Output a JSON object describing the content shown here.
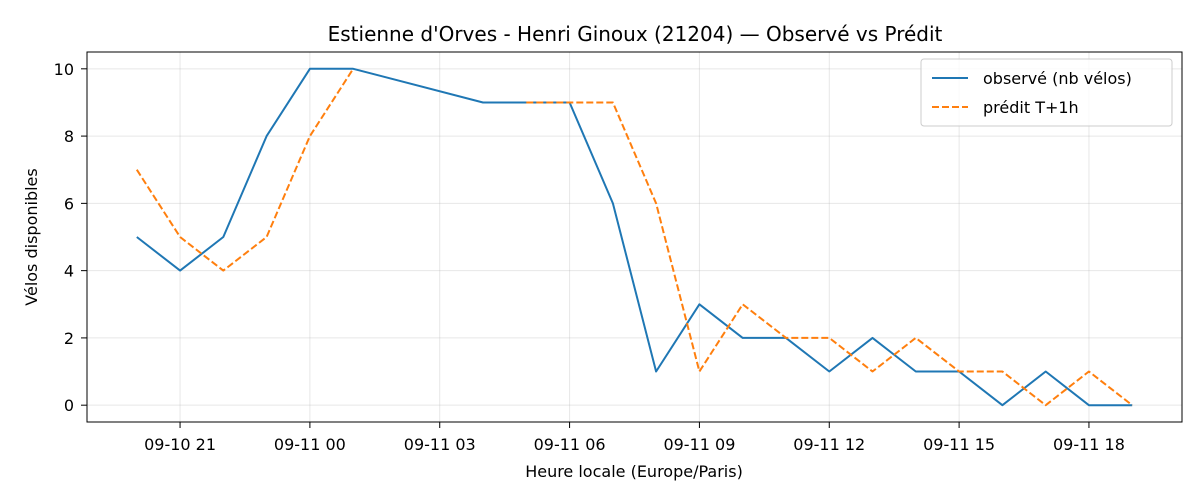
{
  "chart_data": {
    "type": "line",
    "title": "Estienne d'Orves - Henri Ginoux (21204) — Observé vs Prédit",
    "xlabel": "Heure locale (Europe/Paris)",
    "ylabel": "Vélos disponibles",
    "x_start": "2024-09-10 20:00",
    "x_ticks": [
      {
        "hour": 21,
        "label": "09-10 21"
      },
      {
        "hour": 24,
        "label": "09-11 00"
      },
      {
        "hour": 27,
        "label": "09-11 03"
      },
      {
        "hour": 30,
        "label": "09-11 06"
      },
      {
        "hour": 33,
        "label": "09-11 09"
      },
      {
        "hour": 36,
        "label": "09-11 12"
      },
      {
        "hour": 39,
        "label": "09-11 15"
      },
      {
        "hour": 42,
        "label": "09-11 18"
      }
    ],
    "xlim": [
      18.85,
      44.15
    ],
    "ylim": [
      -0.5,
      10.5
    ],
    "y_ticks": [
      0,
      2,
      4,
      6,
      8,
      10
    ],
    "grid": true,
    "legend_position": "top-right",
    "series": [
      {
        "name": "observé (nb vélos)",
        "color": "#1f77b4",
        "dash": "solid",
        "points": [
          [
            20,
            5
          ],
          [
            21,
            4
          ],
          [
            22,
            5
          ],
          [
            23,
            8
          ],
          [
            24,
            10
          ],
          [
            25,
            10
          ],
          [
            28,
            9
          ],
          [
            29,
            9
          ],
          [
            30,
            9
          ],
          [
            31,
            6
          ],
          [
            32,
            1
          ],
          [
            33,
            3
          ],
          [
            34,
            2
          ],
          [
            35,
            2
          ],
          [
            36,
            1
          ],
          [
            37,
            2
          ],
          [
            38,
            1
          ],
          [
            39,
            1
          ],
          [
            40,
            0
          ],
          [
            41,
            1
          ],
          [
            42,
            0
          ],
          [
            43,
            0
          ]
        ]
      },
      {
        "name": "prédit T+1h",
        "color": "#ff7f0e",
        "dash": "dashed",
        "points": [
          [
            20,
            7
          ],
          [
            21,
            5
          ],
          [
            22,
            4
          ],
          [
            23,
            5
          ],
          [
            24,
            8
          ],
          [
            25,
            10
          ],
          null,
          [
            29,
            9
          ],
          [
            30,
            9
          ],
          [
            31,
            9
          ],
          [
            32,
            6
          ],
          [
            33,
            1
          ],
          [
            34,
            3
          ],
          [
            35,
            2
          ],
          [
            36,
            2
          ],
          [
            37,
            1
          ],
          [
            38,
            2
          ],
          [
            39,
            1
          ],
          [
            40,
            1
          ],
          [
            41,
            0
          ],
          [
            42,
            1
          ],
          [
            43,
            0
          ]
        ]
      }
    ]
  }
}
